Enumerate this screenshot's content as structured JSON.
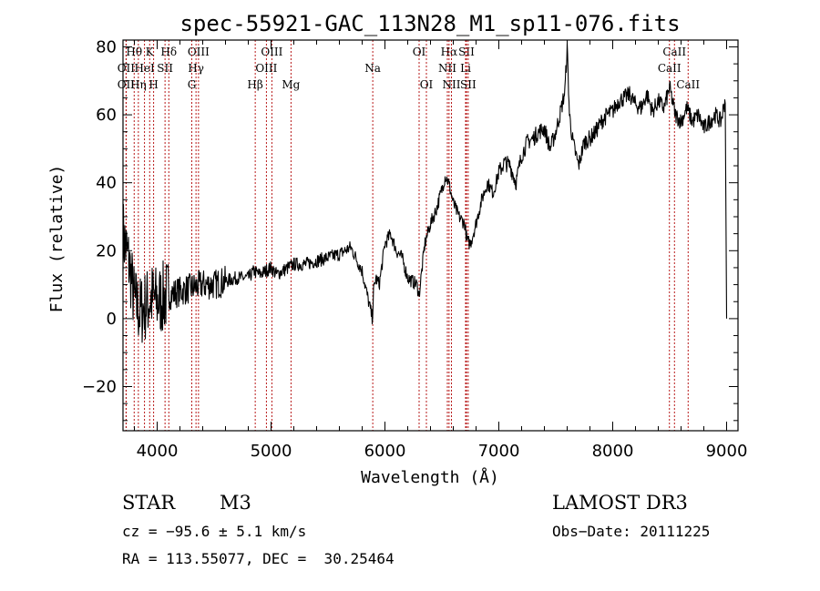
{
  "chart_data": {
    "type": "line",
    "title": "spec-55921-GAC_113N28_M1_sp11-076.fits",
    "xlabel": "Wavelength (Å)",
    "ylabel": "Flux (relative)",
    "xlim": [
      3700,
      9100
    ],
    "ylim": [
      -33,
      82
    ],
    "x_ticks": [
      4000,
      5000,
      6000,
      7000,
      8000,
      9000
    ],
    "x_tick_labels": [
      "4000",
      "5000",
      "6000",
      "7000",
      "8000",
      "9000"
    ],
    "y_ticks": [
      -20,
      0,
      20,
      40,
      60,
      80
    ],
    "y_tick_labels": [
      "−20",
      "0",
      "20",
      "40",
      "60",
      "80"
    ],
    "series": [
      {
        "name": "flux",
        "x": [
          3700,
          3760,
          3800,
          3850,
          3900,
          3950,
          4000,
          4100,
          4200,
          4300,
          4400,
          4500,
          4600,
          4700,
          4800,
          4850,
          4900,
          5000,
          5050,
          5100,
          5200,
          5300,
          5400,
          5500,
          5600,
          5700,
          5800,
          5850,
          5890,
          5900,
          5920,
          5950,
          6000,
          6050,
          6100,
          6150,
          6200,
          6280,
          6300,
          6350,
          6400,
          6450,
          6500,
          6530,
          6560,
          6600,
          6650,
          6700,
          6720,
          6750,
          6800,
          6850,
          6900,
          6950,
          7000,
          7050,
          7100,
          7150,
          7200,
          7250,
          7300,
          7350,
          7400,
          7450,
          7500,
          7550,
          7580,
          7600,
          7620,
          7650,
          7700,
          7750,
          7800,
          7850,
          7900,
          7950,
          8000,
          8050,
          8100,
          8150,
          8200,
          8250,
          8300,
          8350,
          8400,
          8450,
          8500,
          8550,
          8600,
          8650,
          8700,
          8750,
          8800,
          8850,
          8900,
          8950,
          8990,
          9000
        ],
        "y": [
          25,
          15,
          5,
          2,
          4,
          6,
          5,
          7,
          8,
          9,
          10,
          10,
          11,
          12,
          12,
          14,
          13,
          15,
          13,
          14,
          16,
          16,
          17,
          18,
          19,
          21,
          14,
          6,
          0,
          8,
          12,
          10,
          22,
          25,
          20,
          18,
          12,
          10,
          7,
          22,
          28,
          32,
          38,
          42,
          40,
          34,
          30,
          28,
          23,
          22,
          28,
          35,
          40,
          37,
          43,
          46,
          45,
          40,
          48,
          52,
          53,
          55,
          56,
          50,
          55,
          62,
          67,
          80,
          60,
          52,
          45,
          52,
          53,
          55,
          58,
          60,
          61,
          64,
          65,
          66,
          63,
          62,
          66,
          61,
          64,
          62,
          68,
          60,
          58,
          62,
          58,
          60,
          56,
          58,
          60,
          58,
          65,
          0
        ]
      }
    ],
    "lines": [
      {
        "label": "Hθ",
        "x": 3798,
        "row": 1
      },
      {
        "label": "OII",
        "x": 3727,
        "row": 2
      },
      {
        "label": "OII",
        "x": 3727,
        "row": 3
      },
      {
        "label": "K",
        "x": 3934,
        "row": 1
      },
      {
        "label": "HeI",
        "x": 3889,
        "row": 2
      },
      {
        "label": "Hη",
        "x": 3835,
        "row": 3
      },
      {
        "label": "H",
        "x": 3969,
        "row": 3
      },
      {
        "label": "SII",
        "x": 4069,
        "row": 2
      },
      {
        "label": "Hδ",
        "x": 4102,
        "row": 1
      },
      {
        "label": "OIII",
        "x": 4363,
        "row": 1
      },
      {
        "label": "Hγ",
        "x": 4341,
        "row": 2
      },
      {
        "label": "G",
        "x": 4304,
        "row": 3
      },
      {
        "label": "OIII",
        "x": 5007,
        "row": 1
      },
      {
        "label": "OIII",
        "x": 4959,
        "row": 2
      },
      {
        "label": "Hβ",
        "x": 4861,
        "row": 3
      },
      {
        "label": "Mg",
        "x": 5175,
        "row": 3
      },
      {
        "label": "Na",
        "x": 5893,
        "row": 2
      },
      {
        "label": "OI",
        "x": 6300,
        "row": 1
      },
      {
        "label": "OI",
        "x": 6364,
        "row": 3
      },
      {
        "label": "Hα",
        "x": 6563,
        "row": 1
      },
      {
        "label": "NII",
        "x": 6548,
        "row": 2
      },
      {
        "label": "NII",
        "x": 6584,
        "row": 3
      },
      {
        "label": "SII",
        "x": 6716,
        "row": 1
      },
      {
        "label": "Li",
        "x": 6708,
        "row": 2
      },
      {
        "label": "SII",
        "x": 6731,
        "row": 3
      },
      {
        "label": "CaII",
        "x": 8542,
        "row": 1
      },
      {
        "label": "CaII",
        "x": 8498,
        "row": 2
      },
      {
        "label": "CaII",
        "x": 8662,
        "row": 3
      }
    ]
  },
  "info": {
    "class": "STAR",
    "subclass": "M3",
    "survey": "LAMOST DR3",
    "cz": "cz = −95.6 ± 5.1 km/s",
    "obs_date": "Obs−Date: 20111225",
    "coords": "RA = 113.55077, DEC =  30.25464"
  }
}
